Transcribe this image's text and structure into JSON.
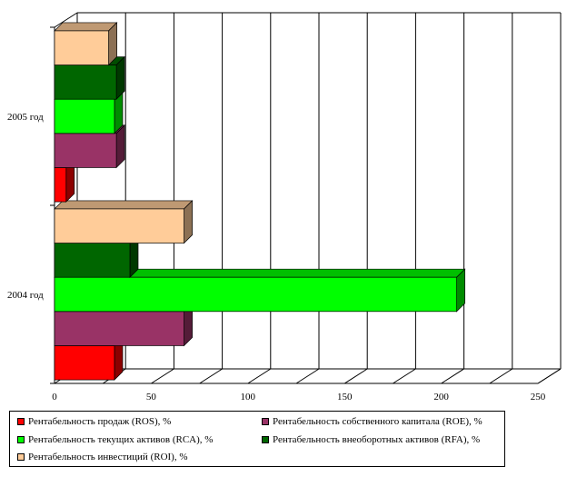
{
  "chart_data": {
    "type": "bar",
    "orientation": "horizontal",
    "three_d": true,
    "categories": [
      "2004 год",
      "2005 год"
    ],
    "series": [
      {
        "name": "Рентабельность продаж (ROS), %",
        "color": "#ff0000",
        "values": [
          31,
          6
        ]
      },
      {
        "name": "Рентабельность собственного капитала (ROE), %",
        "color": "#993366",
        "values": [
          67,
          32
        ]
      },
      {
        "name": "Рентабельность текущих активов (RCA), %",
        "color": "#00ff00",
        "values": [
          208,
          31
        ]
      },
      {
        "name": "Рентабельность внеоборотных активов (RFA), %",
        "color": "#006600",
        "values": [
          39,
          32
        ]
      },
      {
        "name": "Рентабельность инвестиций (ROI), %",
        "color": "#ffcc99",
        "values": [
          67,
          28
        ]
      }
    ],
    "xlim": [
      0,
      250
    ],
    "xticks": [
      "0",
      "50",
      "100",
      "150",
      "200",
      "250"
    ],
    "grid": true,
    "legend_position": "bottom",
    "title": "",
    "xlabel": "",
    "ylabel": ""
  }
}
